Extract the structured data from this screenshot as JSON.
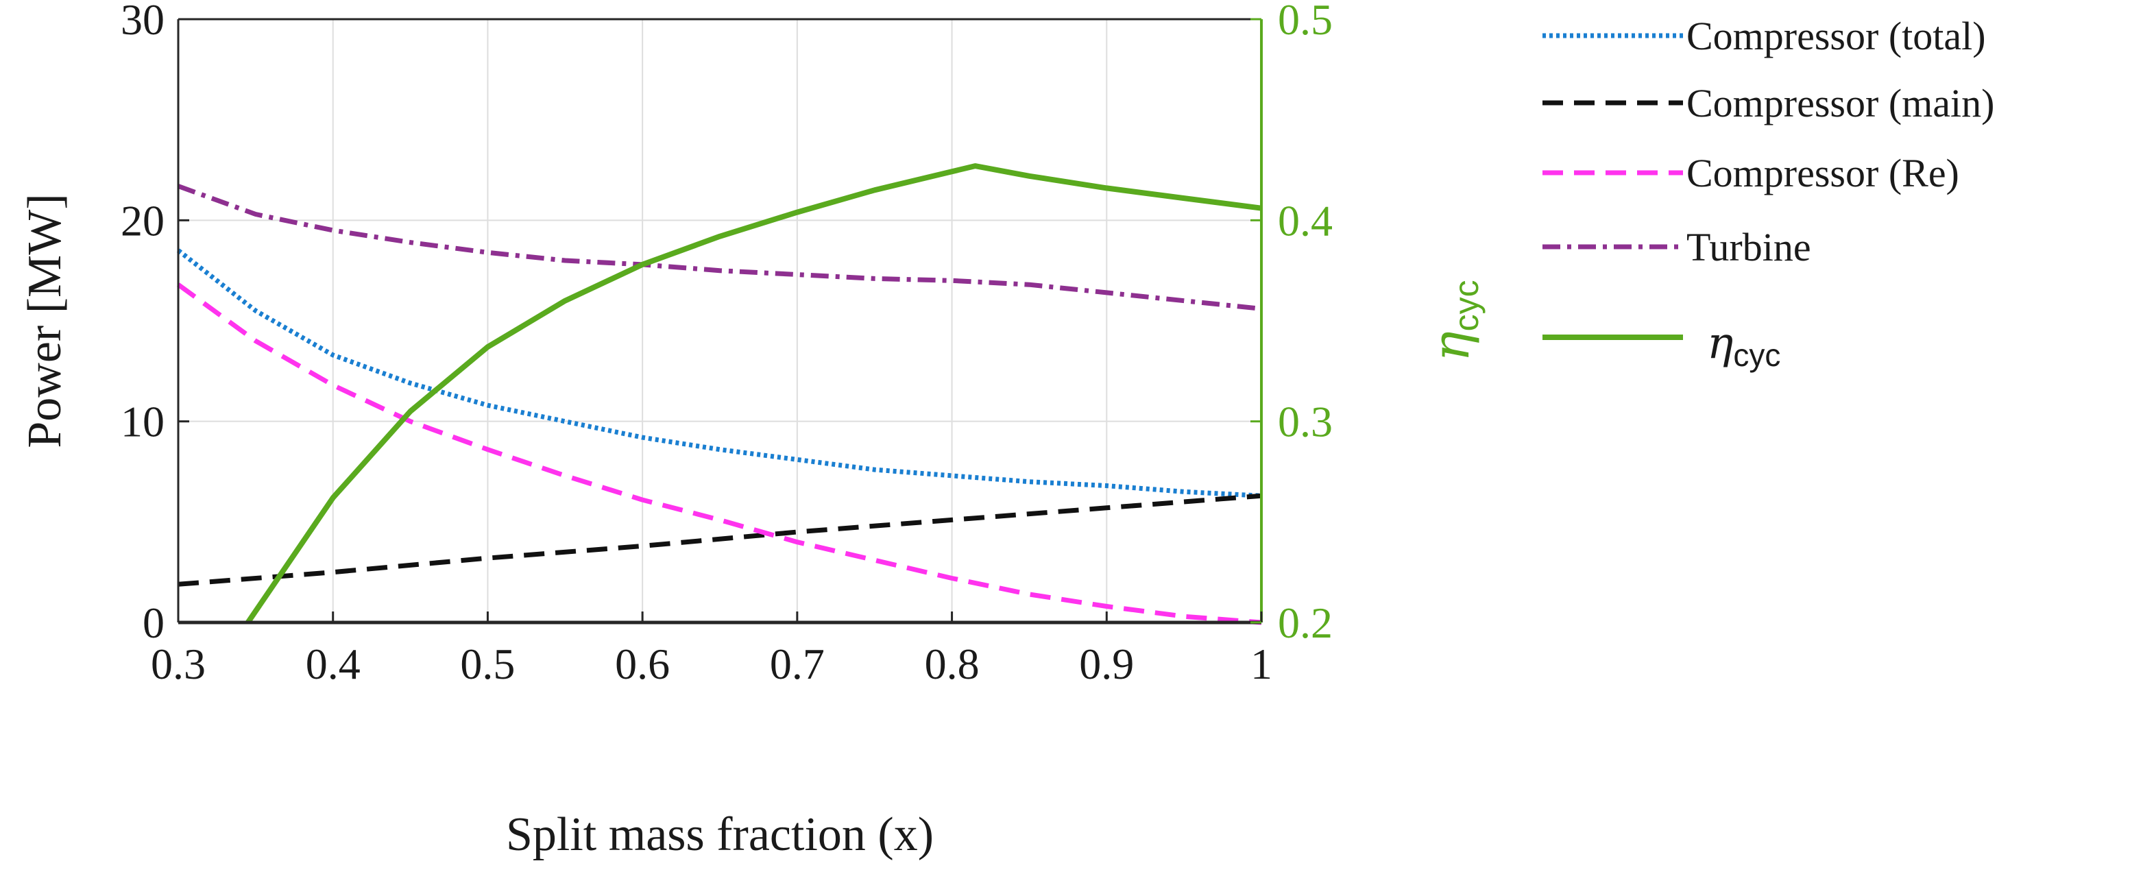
{
  "chart_data": {
    "type": "line",
    "title": "",
    "xlabel": "Split mass fraction (x)",
    "ylabel": "Power [MW]",
    "y2label": "η_cyc",
    "y2label_parts": {
      "symbol": "η",
      "subscript": "cyc"
    },
    "xlim": [
      0.3,
      1.0
    ],
    "ylim": [
      0,
      30
    ],
    "y2lim": [
      0.2,
      0.5
    ],
    "x_ticks": [
      "0.3",
      "0.4",
      "0.5",
      "0.6",
      "0.7",
      "0.8",
      "0.9",
      "1"
    ],
    "y_ticks": [
      "0",
      "10",
      "20",
      "30"
    ],
    "y2_ticks": [
      "0.2",
      "0.3",
      "0.4",
      "0.5"
    ],
    "grid": true,
    "legend_position": "outside-right",
    "colors": {
      "y2_axis": "#5aaa1e"
    },
    "series": [
      {
        "name": "Compressor (total)",
        "axis": "left",
        "color": "#1a7fd1",
        "dash": "dotted",
        "x": [
          0.3,
          0.35,
          0.4,
          0.45,
          0.5,
          0.55,
          0.6,
          0.65,
          0.7,
          0.75,
          0.8,
          0.85,
          0.9,
          0.95,
          1.0
        ],
        "y": [
          18.5,
          15.5,
          13.3,
          11.9,
          10.8,
          10.0,
          9.2,
          8.6,
          8.1,
          7.6,
          7.3,
          7.0,
          6.8,
          6.5,
          6.3
        ]
      },
      {
        "name": "Compressor (main)",
        "axis": "left",
        "color": "#111111",
        "dash": "dashed",
        "x": [
          0.3,
          0.4,
          0.5,
          0.6,
          0.7,
          0.8,
          0.9,
          1.0
        ],
        "y": [
          1.9,
          2.5,
          3.2,
          3.8,
          4.5,
          5.1,
          5.7,
          6.3
        ]
      },
      {
        "name": "Compressor (Re)",
        "axis": "left",
        "color": "#ff33ee",
        "dash": "dashed",
        "x": [
          0.3,
          0.35,
          0.4,
          0.45,
          0.5,
          0.55,
          0.6,
          0.65,
          0.7,
          0.75,
          0.8,
          0.85,
          0.9,
          0.95,
          1.0
        ],
        "y": [
          16.8,
          14.0,
          11.8,
          10.0,
          8.6,
          7.3,
          6.1,
          5.1,
          4.0,
          3.1,
          2.2,
          1.4,
          0.8,
          0.3,
          0.0
        ]
      },
      {
        "name": "Turbine",
        "axis": "left",
        "color": "#8e3090",
        "dash": "dashdot",
        "x": [
          0.3,
          0.35,
          0.4,
          0.45,
          0.5,
          0.55,
          0.6,
          0.65,
          0.7,
          0.75,
          0.8,
          0.85,
          0.9,
          0.95,
          1.0
        ],
        "y": [
          21.7,
          20.3,
          19.5,
          18.9,
          18.4,
          18.0,
          17.8,
          17.5,
          17.3,
          17.1,
          17.0,
          16.8,
          16.4,
          16.0,
          15.6
        ]
      },
      {
        "name": "η_cyc",
        "label_parts": {
          "symbol": "η",
          "subscript": "cyc"
        },
        "axis": "right",
        "color": "#5aaa1e",
        "dash": "solid",
        "x": [
          0.345,
          0.4,
          0.45,
          0.5,
          0.55,
          0.6,
          0.65,
          0.7,
          0.75,
          0.815,
          0.85,
          0.9,
          0.95,
          1.0
        ],
        "y": [
          0.2,
          0.262,
          0.305,
          0.337,
          0.36,
          0.378,
          0.392,
          0.404,
          0.415,
          0.427,
          0.422,
          0.416,
          0.411,
          0.406
        ]
      }
    ]
  }
}
